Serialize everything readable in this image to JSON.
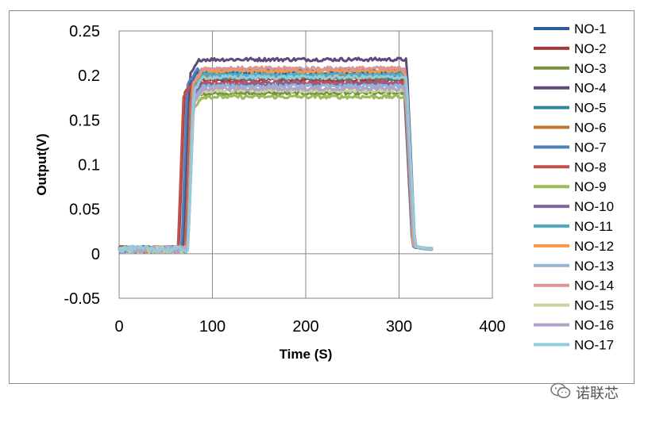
{
  "chart_data": {
    "type": "line",
    "title": "",
    "xlabel": "Time (S)",
    "ylabel": "Output(V)",
    "xlim": [
      0,
      400
    ],
    "ylim": [
      -0.05,
      0.25
    ],
    "x_ticks": [
      0,
      100,
      200,
      300,
      400
    ],
    "y_ticks": [
      -0.05,
      0,
      0.05,
      0.1,
      0.15,
      0.2,
      0.25
    ],
    "y_tick_labels": [
      "-0.05",
      "0",
      "0.05",
      "0.1",
      "0.15",
      "0.2",
      "0.25"
    ],
    "grid": "vertical lines",
    "legend_position": "right",
    "series": [
      {
        "name": "NO-1",
        "color": "#2e5b9a",
        "rise": 68,
        "fall": 306,
        "level": 0.203
      },
      {
        "name": "NO-2",
        "color": "#a33a36",
        "rise": 64,
        "fall": 305,
        "level": 0.195
      },
      {
        "name": "NO-3",
        "color": "#77933c",
        "rise": 72,
        "fall": 307,
        "level": 0.18
      },
      {
        "name": "NO-4",
        "color": "#5f497a",
        "rise": 70,
        "fall": 308,
        "level": 0.218
      },
      {
        "name": "NO-5",
        "color": "#31859c",
        "rise": 72,
        "fall": 306,
        "level": 0.197
      },
      {
        "name": "NO-6",
        "color": "#c0772e",
        "rise": 71,
        "fall": 306,
        "level": 0.199
      },
      {
        "name": "NO-7",
        "color": "#4f81bd",
        "rise": 67,
        "fall": 305,
        "level": 0.206
      },
      {
        "name": "NO-8",
        "color": "#c0504d",
        "rise": 63,
        "fall": 306,
        "level": 0.192
      },
      {
        "name": "NO-9",
        "color": "#9bbb59",
        "rise": 73,
        "fall": 307,
        "level": 0.176
      },
      {
        "name": "NO-10",
        "color": "#8064a2",
        "rise": 72,
        "fall": 307,
        "level": 0.19
      },
      {
        "name": "NO-11",
        "color": "#4bacc6",
        "rise": 73,
        "fall": 306,
        "level": 0.201
      },
      {
        "name": "NO-12",
        "color": "#f79646",
        "rise": 73,
        "fall": 306,
        "level": 0.205
      },
      {
        "name": "NO-13",
        "color": "#95b3d7",
        "rise": 74,
        "fall": 307,
        "level": 0.188
      },
      {
        "name": "NO-14",
        "color": "#d99694",
        "rise": 73,
        "fall": 307,
        "level": 0.208
      },
      {
        "name": "NO-15",
        "color": "#c3d69b",
        "rise": 74,
        "fall": 307,
        "level": 0.183
      },
      {
        "name": "NO-16",
        "color": "#b2a2c7",
        "rise": 74,
        "fall": 307,
        "level": 0.185
      },
      {
        "name": "NO-17",
        "color": "#93cddd",
        "rise": 74,
        "fall": 308,
        "level": 0.198
      }
    ],
    "x_end": 336,
    "baseline_level": 0.005
  },
  "watermark": {
    "text": "诺联芯",
    "icon": "wechat-icon"
  }
}
